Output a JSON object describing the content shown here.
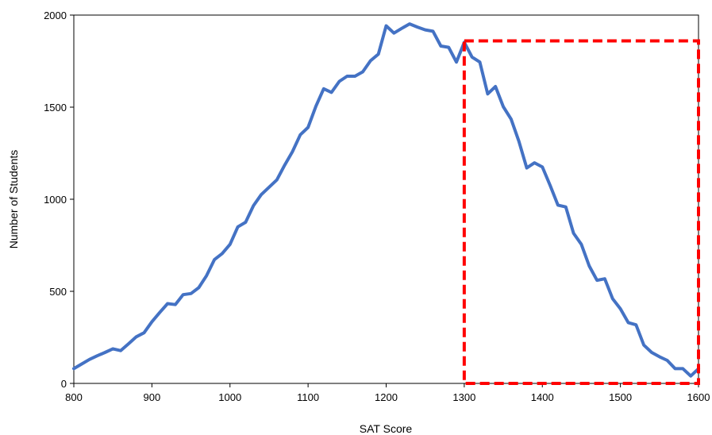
{
  "chart_data": {
    "type": "line",
    "title": "",
    "xlabel": "SAT Score",
    "ylabel": "Number of Students",
    "xlim": [
      800,
      1600
    ],
    "ylim": [
      0,
      2000
    ],
    "xticks": [
      800,
      900,
      1000,
      1100,
      1200,
      1300,
      1400,
      1500,
      1600
    ],
    "yticks": [
      0,
      500,
      1000,
      1500,
      2000
    ],
    "grid": false,
    "legend": "none",
    "series": [
      {
        "color": "#4472C4",
        "x": [
          800,
          810,
          820,
          830,
          840,
          850,
          860,
          870,
          880,
          890,
          900,
          910,
          920,
          930,
          940,
          950,
          960,
          970,
          980,
          990,
          1000,
          1010,
          1020,
          1030,
          1040,
          1050,
          1060,
          1070,
          1080,
          1090,
          1100,
          1110,
          1120,
          1130,
          1140,
          1150,
          1160,
          1170,
          1180,
          1190,
          1200,
          1210,
          1220,
          1230,
          1240,
          1250,
          1260,
          1270,
          1280,
          1290,
          1300,
          1310,
          1320,
          1330,
          1340,
          1350,
          1360,
          1370,
          1380,
          1390,
          1400,
          1410,
          1420,
          1430,
          1440,
          1450,
          1460,
          1470,
          1480,
          1490,
          1500,
          1510,
          1520,
          1530,
          1540,
          1550,
          1560,
          1570,
          1580,
          1590,
          1600
        ],
        "y": [
          80,
          105,
          130,
          150,
          168,
          188,
          178,
          215,
          253,
          275,
          335,
          385,
          433,
          428,
          482,
          488,
          520,
          585,
          672,
          705,
          755,
          850,
          875,
          965,
          1025,
          1065,
          1105,
          1185,
          1258,
          1350,
          1390,
          1505,
          1600,
          1580,
          1640,
          1668,
          1668,
          1692,
          1752,
          1788,
          1942,
          1902,
          1928,
          1952,
          1935,
          1920,
          1912,
          1832,
          1825,
          1745,
          1852,
          1772,
          1745,
          1572,
          1612,
          1502,
          1435,
          1315,
          1170,
          1198,
          1175,
          1075,
          968,
          958,
          815,
          755,
          638,
          560,
          568,
          460,
          405,
          330,
          318,
          208,
          168,
          145,
          125,
          80,
          80,
          40,
          80
        ]
      }
    ],
    "annotations": [
      {
        "type": "dashed-rectangle",
        "color": "#FF0000",
        "x_range": [
          1300,
          1600
        ],
        "y_range": [
          0,
          1860
        ]
      }
    ]
  }
}
